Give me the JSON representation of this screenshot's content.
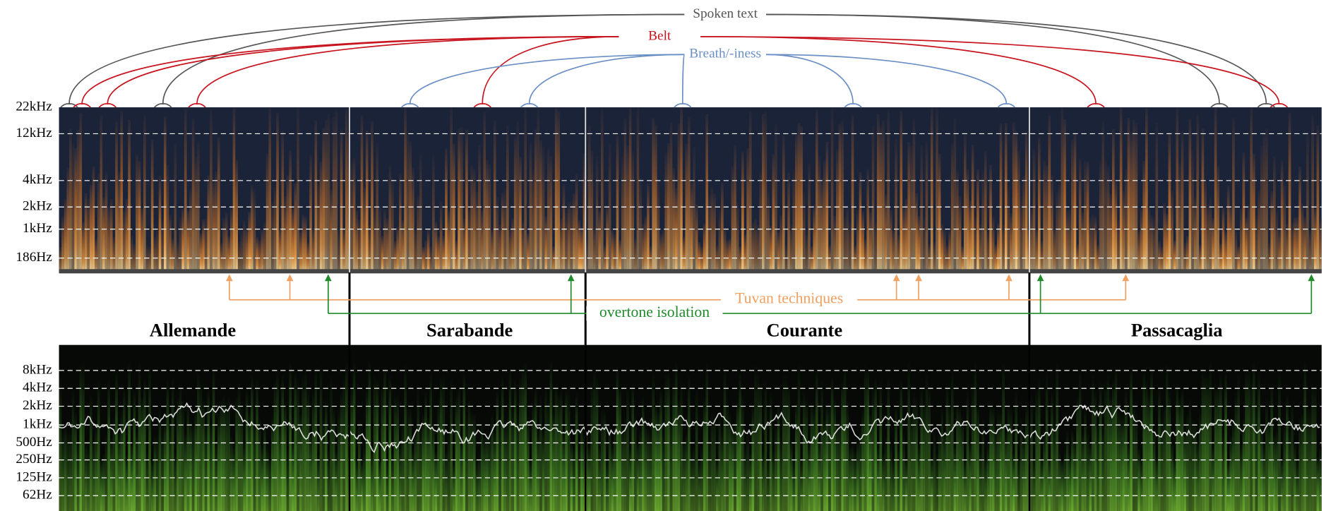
{
  "annotations": {
    "top": [
      "Spoken text",
      "Belt",
      "Breath/-iness"
    ],
    "bottom": [
      "Tuvan techniques",
      "overtone isolation"
    ]
  },
  "top_spectrogram": {
    "frequency_labels": [
      "22kHz",
      "12kHz",
      "4kHz",
      "2kHz",
      "1kHz",
      "186Hz"
    ]
  },
  "bottom_spectrogram": {
    "frequency_labels": [
      "8kHz",
      "4kHz",
      "2kHz",
      "1kHz",
      "500Hz",
      "250Hz",
      "125Hz",
      "62Hz"
    ]
  },
  "sections": [
    "Allemande",
    "Sarabande",
    "Courante",
    "Passacaglia"
  ]
}
